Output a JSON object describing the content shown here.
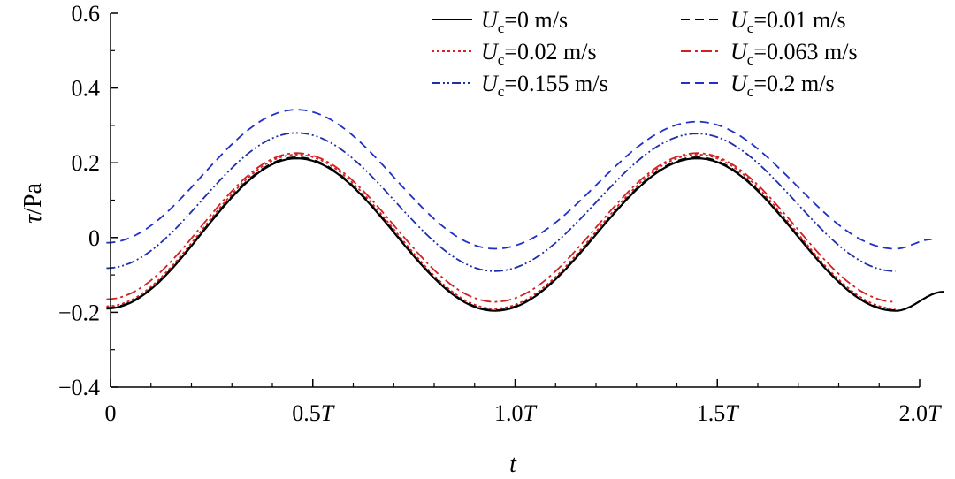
{
  "chart_data": {
    "type": "line",
    "xlabel_var": "t",
    "ylabel_var": "τ",
    "ylabel_unit": "/Pa",
    "xlim": [
      0,
      2.0
    ],
    "ylim": [
      -0.4,
      0.6
    ],
    "x_ticks": [
      {
        "value": 0,
        "label": "0",
        "suffix": ""
      },
      {
        "value": 0.5,
        "label": "0.5",
        "suffix": "T"
      },
      {
        "value": 1.0,
        "label": "1.0",
        "suffix": "T"
      },
      {
        "value": 1.5,
        "label": "1.5",
        "suffix": "T"
      },
      {
        "value": 2.0,
        "label": "2.0",
        "suffix": "T"
      }
    ],
    "y_ticks": [
      {
        "value": -0.4,
        "label": "−0.4"
      },
      {
        "value": -0.2,
        "label": "−0.2"
      },
      {
        "value": 0,
        "label": "0"
      },
      {
        "value": 0.2,
        "label": "0.2"
      },
      {
        "value": 0.4,
        "label": "0.4"
      },
      {
        "value": 0.6,
        "label": "0.6"
      }
    ],
    "legend_position": "top-right",
    "series": [
      {
        "name": "Uc=0 m/s",
        "sym": "U",
        "sub": "c",
        "rest": "=0 m/s",
        "color": "#000000",
        "style": "solid",
        "x": [
          -0.01,
          0.46,
          0.95,
          1.45,
          1.94,
          2.06
        ],
        "y": [
          -0.19,
          0.212,
          -0.196,
          0.212,
          -0.196,
          -0.145
        ]
      },
      {
        "name": "Uc=0.01 m/s",
        "sym": "U",
        "sub": "c",
        "rest": "=0.01 m/s",
        "color": "#000000",
        "style": "dash",
        "x": [
          -0.01,
          0.46,
          0.95,
          1.45,
          1.94
        ],
        "y": [
          -0.188,
          0.215,
          -0.194,
          0.215,
          -0.194
        ]
      },
      {
        "name": "Uc=0.02 m/s",
        "sym": "U",
        "sub": "c",
        "rest": "=0.02 m/s",
        "color": "#d42020",
        "style": "dot",
        "x": [
          -0.01,
          0.46,
          0.95,
          1.45,
          1.94
        ],
        "y": [
          -0.184,
          0.222,
          -0.19,
          0.222,
          -0.19
        ]
      },
      {
        "name": "Uc=0.063 m/s",
        "sym": "U",
        "sub": "c",
        "rest": "=0.063 m/s",
        "color": "#d42020",
        "style": "dashdot",
        "x": [
          -0.01,
          0.46,
          0.95,
          1.45,
          1.94
        ],
        "y": [
          -0.165,
          0.226,
          -0.172,
          0.226,
          -0.172
        ]
      },
      {
        "name": "Uc=0.155 m/s",
        "sym": "U",
        "sub": "c",
        "rest": "=0.155 m/s",
        "color": "#1e2fa8",
        "style": "dashdotdot",
        "x": [
          -0.01,
          0.46,
          0.95,
          1.45,
          1.94
        ],
        "y": [
          -0.082,
          0.28,
          -0.09,
          0.278,
          -0.09
        ]
      },
      {
        "name": "Uc=0.2 m/s",
        "sym": "U",
        "sub": "c",
        "rest": "=0.2 m/s",
        "color": "#2030c8",
        "style": "dash",
        "x": [
          -0.01,
          0.46,
          0.95,
          1.45,
          1.94,
          2.03
        ],
        "y": [
          -0.014,
          0.342,
          -0.03,
          0.31,
          -0.03,
          -0.005
        ]
      }
    ]
  }
}
